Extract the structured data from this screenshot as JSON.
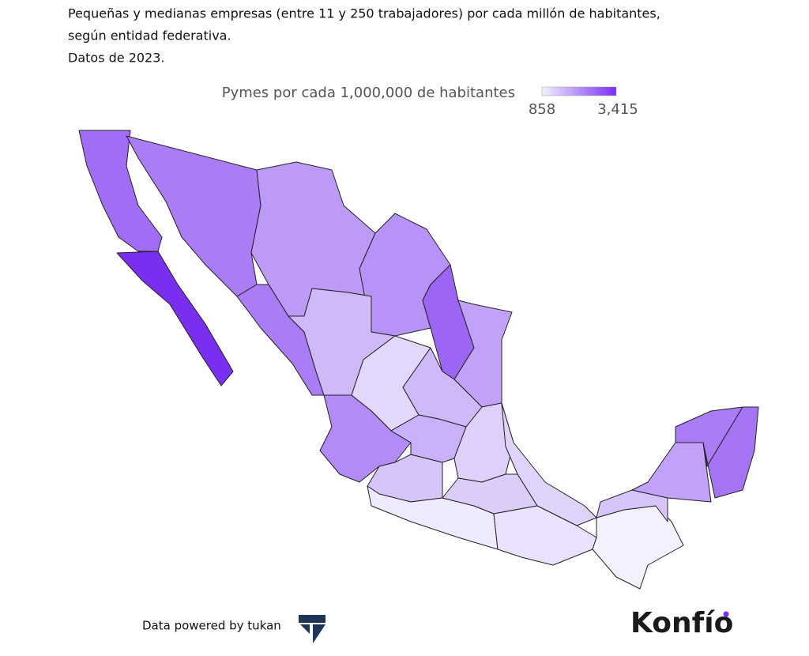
{
  "map": {
    "title": [
      "Pequeñas y medianas empresas (entre 11 y 250 trabajadores) por cada millón de habitantes,",
      "según entidad federativa.",
      "Datos de 2023."
    ],
    "legend": {
      "title": "Pymes por cada 1,000,000 de habitantes",
      "ticks": [
        858,
        {
          "value": 3415,
          "label": "3,415"
        }
      ],
      "low_color": "#f3f1fd",
      "high_color": "#7a2ff0"
    },
    "values": [
      2600,
      3415,
      2400,
      2000,
      2100,
      2700,
      1900,
      2400,
      1600,
      1200,
      1600,
      2200,
      1450,
      1700,
      1300,
      950,
      1250,
      1350,
      1050,
      858,
      1450,
      1900,
      2400,
      2500
    ],
    "footer": "Data powered by tukan",
    "logo": "Konfío"
  }
}
